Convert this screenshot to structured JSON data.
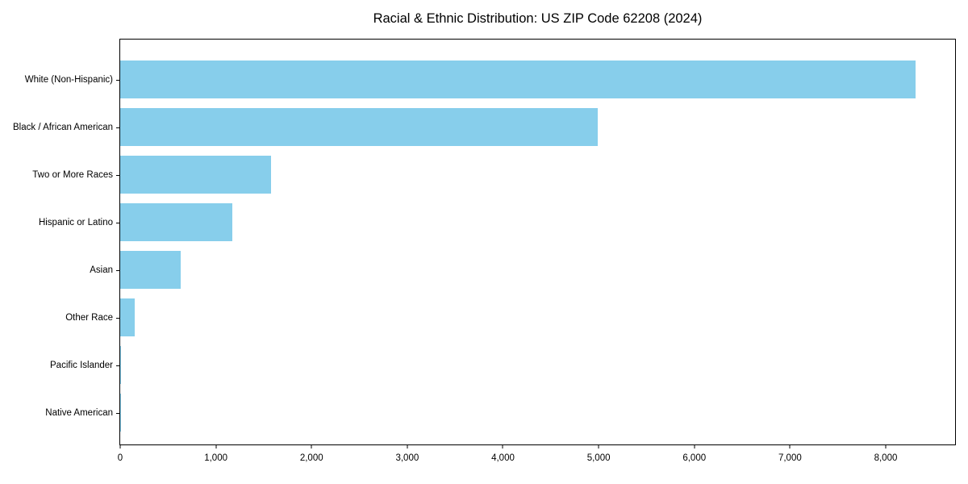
{
  "title": "Racial & Ethnic Distribution: US ZIP Code 62208 (2024)",
  "colors": {
    "bar": "#87CEEB",
    "axis": "#000000",
    "background": "#FFFFFF"
  },
  "chart_data": {
    "type": "bar",
    "orientation": "horizontal",
    "title": "Racial & Ethnic Distribution: US ZIP Code 62208 (2024)",
    "categories": [
      "White (Non-Hispanic)",
      "Black / African American",
      "Two or More Races",
      "Hispanic or Latino",
      "Asian",
      "Other Race",
      "Pacific Islander",
      "Native American"
    ],
    "values": [
      8310,
      4990,
      1580,
      1170,
      630,
      150,
      12,
      4
    ],
    "xlabel": "",
    "ylabel": "",
    "xlim": [
      0,
      8725
    ],
    "xticks": [
      0,
      1000,
      2000,
      3000,
      4000,
      5000,
      6000,
      7000,
      8000
    ],
    "xtick_labels": [
      "0",
      "1,000",
      "2,000",
      "3,000",
      "4,000",
      "5,000",
      "6,000",
      "7,000",
      "8,000"
    ],
    "grid": false,
    "legend": null,
    "bar_color": "#87CEEB"
  }
}
